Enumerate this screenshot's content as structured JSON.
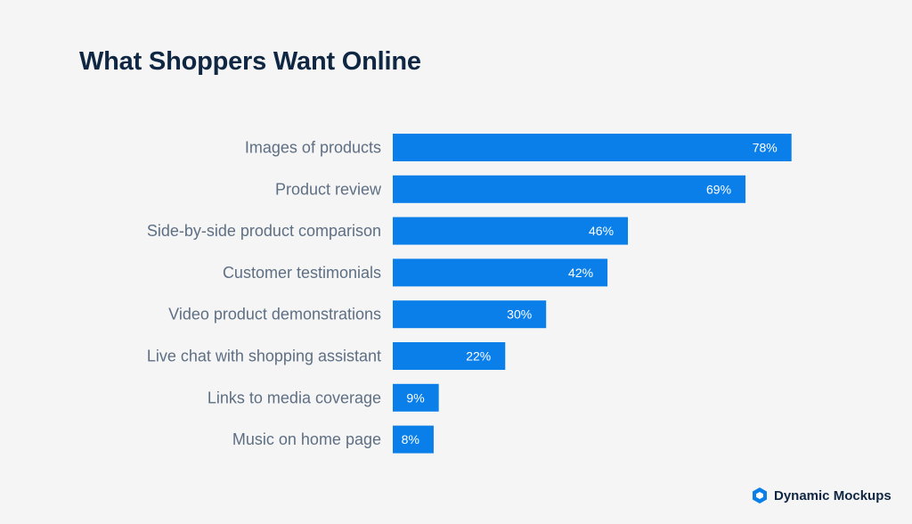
{
  "title": "What Shoppers Want Online",
  "brand": {
    "name": "Dynamic Mockups",
    "icon": "dynamic-mockups-logo-icon"
  },
  "colors": {
    "bar": "#0a7fea",
    "background": "#f5f5f5",
    "title": "#0f2743",
    "label": "#5e6f84"
  },
  "chart_data": {
    "type": "bar",
    "orientation": "horizontal",
    "categories": [
      "Images of products",
      "Product review",
      "Side-by-side product comparison",
      "Customer testimonials",
      "Video product demonstrations",
      "Live chat with shopping assistant",
      "Links to media coverage",
      "Music on home page"
    ],
    "values": [
      78,
      69,
      46,
      42,
      30,
      22,
      9,
      8
    ],
    "value_labels": [
      "78%",
      "69%",
      "46%",
      "42%",
      "30%",
      "22%",
      "9%",
      "8%"
    ],
    "unit": "%",
    "grid": false,
    "legend": false
  }
}
